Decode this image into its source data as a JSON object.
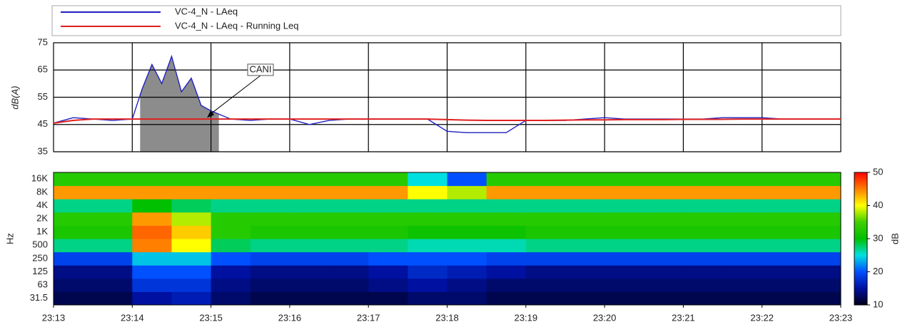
{
  "chart_data": [
    {
      "type": "line",
      "ylabel": "dB(A)",
      "ylim": [
        35,
        75
      ],
      "yticks": [
        35,
        45,
        55,
        65,
        75
      ],
      "xlim": [
        1393,
        1403
      ],
      "xticks": [
        1393,
        1394,
        1395,
        1396,
        1397,
        1398,
        1399,
        1400,
        1401,
        1402,
        1403
      ],
      "grid": true,
      "legend": "top",
      "x": [
        1393,
        1393.25,
        1393.5,
        1393.75,
        1394,
        1394.125,
        1394.25,
        1394.375,
        1394.5,
        1394.625,
        1394.75,
        1394.875,
        1395,
        1395.25,
        1395.5,
        1395.75,
        1396,
        1396.25,
        1396.5,
        1396.75,
        1397,
        1397.25,
        1397.5,
        1397.75,
        1398,
        1398.25,
        1398.5,
        1398.75,
        1399,
        1399.25,
        1399.5,
        1399.75,
        1400,
        1400.25,
        1400.5,
        1400.75,
        1401,
        1401.25,
        1401.5,
        1401.75,
        1402,
        1402.25,
        1402.5,
        1402.75,
        1403
      ],
      "series": [
        {
          "name": "VC-4_N - LAeq",
          "color": "#2020c0",
          "values": [
            45.5,
            47.5,
            47,
            46.5,
            47,
            58,
            67,
            60,
            70,
            57,
            62,
            52,
            50,
            47,
            46.5,
            47,
            47,
            45,
            46.5,
            47,
            47,
            47,
            47,
            47,
            42.5,
            42,
            42,
            42,
            46.5,
            46.5,
            46.5,
            47,
            47.5,
            47,
            47,
            47,
            47,
            47,
            47.5,
            47.5,
            47.5,
            47,
            47,
            47,
            47
          ]
        },
        {
          "name": "VC-4_N - LAeq - Running Leq",
          "color": "#e02020",
          "values": [
            45.5,
            46.5,
            47,
            47,
            47,
            47,
            47,
            47,
            47,
            47,
            47,
            47,
            47,
            47,
            47,
            47,
            47,
            47,
            47,
            47,
            47,
            47,
            47,
            47,
            46.8,
            46.6,
            46.5,
            46.5,
            46.5,
            46.5,
            46.6,
            46.7,
            46.7,
            46.8,
            46.8,
            46.8,
            46.9,
            46.9,
            46.9,
            47,
            47,
            47,
            47,
            47,
            47
          ]
        }
      ],
      "highlight_xlim": [
        1394.1,
        1395.1
      ],
      "annotations": [
        {
          "text": "CANI",
          "x": 1394.95,
          "y": 47.5
        }
      ]
    },
    {
      "type": "heatmap",
      "ylabel": "Hz",
      "zlabel": "dB",
      "xlim": [
        1393,
        1403
      ],
      "xticks": [
        {
          "value": 1393,
          "label": "23:13"
        },
        {
          "value": 1394,
          "label": "23:14"
        },
        {
          "value": 1395,
          "label": "23:15"
        },
        {
          "value": 1396,
          "label": "23:16"
        },
        {
          "value": 1397,
          "label": "23:17"
        },
        {
          "value": 1398,
          "label": "23:18"
        },
        {
          "value": 1399,
          "label": "23:19"
        },
        {
          "value": 1400,
          "label": "23:20"
        },
        {
          "value": 1401,
          "label": "23:21"
        },
        {
          "value": 1402,
          "label": "23:22"
        },
        {
          "value": 1403,
          "label": "23:23"
        }
      ],
      "xbins": [
        1393,
        1393.5,
        1394,
        1394.5,
        1395,
        1395.5,
        1396,
        1396.5,
        1397,
        1397.5,
        1398,
        1398.5,
        1399,
        1399.5,
        1400,
        1400.5,
        1401,
        1401.5,
        1402,
        1402.5,
        1403
      ],
      "categories": [
        "31.5",
        "63",
        "125",
        "250",
        "500",
        "1K",
        "2K",
        "4K",
        "8K",
        "16K"
      ],
      "z": [
        [
          12,
          12,
          15,
          16,
          13,
          12,
          12,
          12,
          12,
          13,
          13,
          12,
          12,
          12,
          12,
          12,
          12,
          12,
          12,
          12
        ],
        [
          13,
          13,
          18,
          18,
          14,
          13,
          13,
          13,
          14,
          15,
          14,
          13,
          13,
          13,
          13,
          13,
          13,
          13,
          13,
          13
        ],
        [
          14,
          14,
          20,
          20,
          15,
          14,
          14,
          14,
          15,
          17,
          16,
          15,
          14,
          14,
          14,
          14,
          14,
          14,
          14,
          14
        ],
        [
          19,
          19,
          24,
          24,
          20,
          19,
          19,
          19,
          20,
          20,
          20,
          19,
          19,
          19,
          19,
          19,
          19,
          19,
          19,
          19
        ],
        [
          27,
          27,
          45,
          40,
          28,
          27,
          27,
          27,
          27,
          26,
          26,
          26,
          27,
          27,
          27,
          27,
          27,
          27,
          27,
          27
        ],
        [
          32,
          32,
          46,
          42,
          33,
          32,
          32,
          32,
          32,
          31,
          31,
          31,
          32,
          32,
          32,
          32,
          32,
          32,
          32,
          32
        ],
        [
          33,
          33,
          44,
          38,
          33,
          33,
          33,
          33,
          33,
          33,
          33,
          33,
          33,
          33,
          33,
          33,
          33,
          33,
          33,
          33
        ],
        [
          27,
          27,
          30,
          28,
          27,
          27,
          27,
          27,
          27,
          27,
          27,
          27,
          27,
          27,
          27,
          27,
          27,
          27,
          27,
          27
        ],
        [
          44,
          44,
          44,
          44,
          44,
          44,
          44,
          44,
          44,
          40,
          38,
          44,
          44,
          44,
          44,
          44,
          44,
          44,
          44,
          44
        ],
        [
          33,
          33,
          33,
          33,
          33,
          33,
          33,
          33,
          33,
          25,
          20,
          33,
          33,
          33,
          33,
          33,
          33,
          33,
          33,
          33
        ]
      ],
      "zlim": [
        10,
        50
      ],
      "zticks": [
        10,
        20,
        30,
        40,
        50
      ],
      "colormap": [
        [
          10,
          "#000018"
        ],
        [
          15,
          "#0010a0"
        ],
        [
          20,
          "#0050ff"
        ],
        [
          25,
          "#00e0e0"
        ],
        [
          30,
          "#00c000"
        ],
        [
          35,
          "#40d000"
        ],
        [
          40,
          "#ffff00"
        ],
        [
          50,
          "#ff0000"
        ]
      ]
    }
  ]
}
